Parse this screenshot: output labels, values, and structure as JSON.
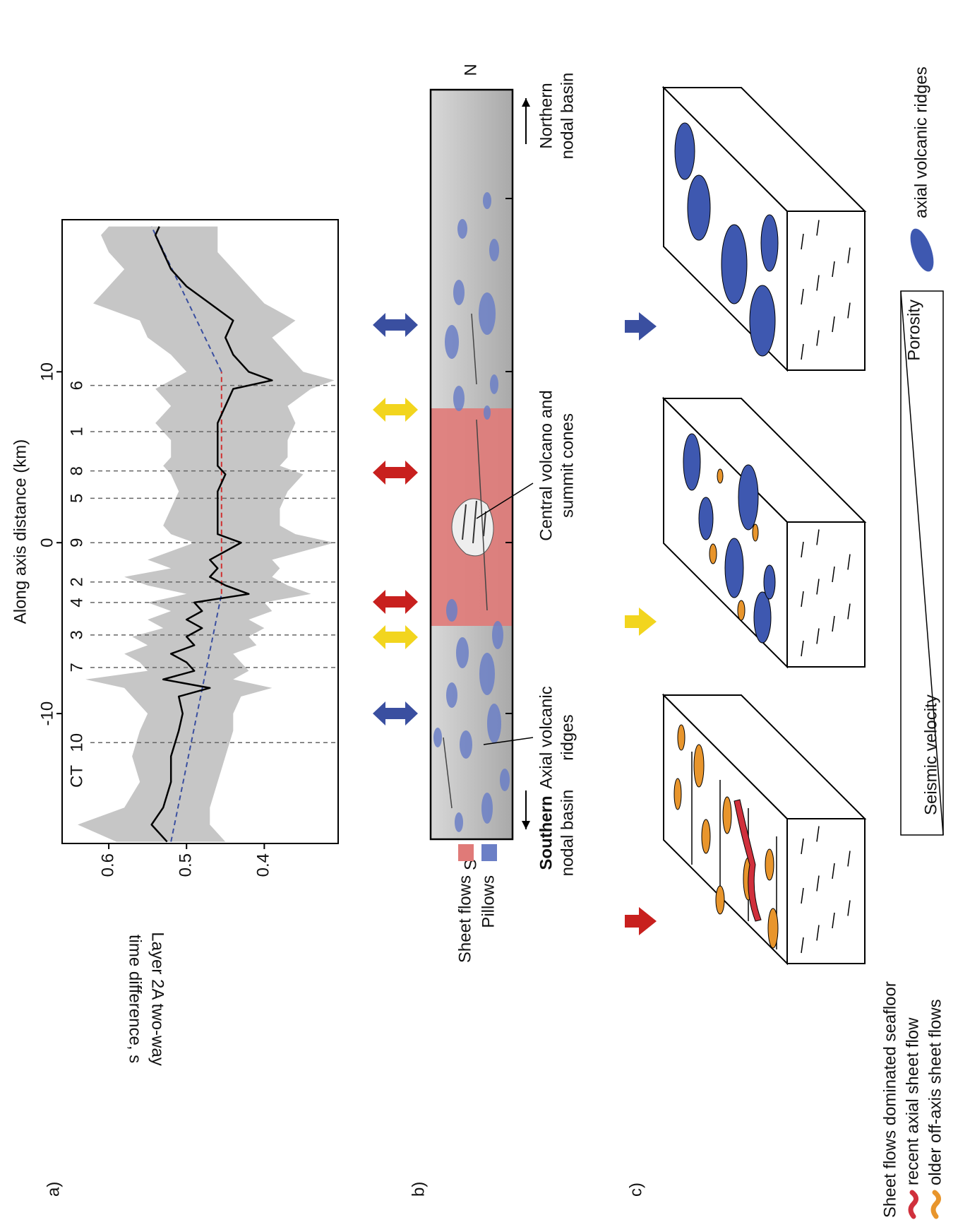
{
  "chart_data": {
    "type": "line",
    "panel_label": "a)",
    "xlabel": "Along axis distance (km)",
    "ylabel": [
      "Layer 2A two-way",
      "time difference, s"
    ],
    "xlim": [
      -17.6,
      18.9
    ],
    "ylim": [
      0.305,
      0.66
    ],
    "xticks": [
      -10,
      0,
      10
    ],
    "yticks": [
      0.4,
      0.5,
      0.6
    ],
    "x": [
      -17.5,
      -16.5,
      -15.5,
      -14,
      -12.5,
      -11,
      -10,
      -9,
      -8.5,
      -8,
      -7.5,
      -7,
      -6.5,
      -6,
      -5.5,
      -5,
      -4.5,
      -4,
      -3.5,
      -3,
      -2.5,
      -2,
      -1.5,
      -1,
      0,
      0.5,
      1,
      2,
      3,
      4,
      4.5,
      5,
      6,
      7,
      8,
      9,
      9.5,
      10,
      11,
      12,
      13,
      14,
      15,
      16,
      17,
      18,
      18.5
    ],
    "series": [
      {
        "color": "#000000",
        "values": [
          0.525,
          0.545,
          0.53,
          0.52,
          0.52,
          0.51,
          0.505,
          0.51,
          0.47,
          0.53,
          0.49,
          0.5,
          0.52,
          0.49,
          0.5,
          0.48,
          0.5,
          0.48,
          0.49,
          0.42,
          0.45,
          0.47,
          0.46,
          0.47,
          0.43,
          0.46,
          0.46,
          0.46,
          0.46,
          0.45,
          0.46,
          0.46,
          0.46,
          0.46,
          0.45,
          0.44,
          0.39,
          0.42,
          0.44,
          0.45,
          0.44,
          0.47,
          0.5,
          0.52,
          0.53,
          0.54,
          0.535
        ]
      }
    ],
    "band": {
      "color": "#c6c6c6",
      "upper": [
        0.59,
        0.64,
        0.58,
        0.56,
        0.57,
        0.56,
        0.55,
        0.57,
        0.58,
        0.63,
        0.55,
        0.56,
        0.58,
        0.55,
        0.57,
        0.53,
        0.55,
        0.52,
        0.55,
        0.5,
        0.55,
        0.58,
        0.52,
        0.55,
        0.49,
        0.52,
        0.53,
        0.52,
        0.51,
        0.52,
        0.53,
        0.52,
        0.52,
        0.54,
        0.52,
        0.54,
        0.52,
        0.5,
        0.52,
        0.55,
        0.56,
        0.62,
        0.6,
        0.58,
        0.6,
        0.61,
        0.6
      ],
      "lower": [
        0.45,
        0.47,
        0.47,
        0.46,
        0.45,
        0.44,
        0.44,
        0.43,
        0.39,
        0.44,
        0.42,
        0.43,
        0.44,
        0.41,
        0.42,
        0.4,
        0.42,
        0.39,
        0.4,
        0.34,
        0.37,
        0.39,
        0.38,
        0.39,
        0.31,
        0.36,
        0.38,
        0.38,
        0.37,
        0.35,
        0.38,
        0.37,
        0.37,
        0.36,
        0.37,
        0.34,
        0.31,
        0.35,
        0.37,
        0.39,
        0.36,
        0.4,
        0.42,
        0.44,
        0.46,
        0.46,
        0.46
      ]
    },
    "trend": [
      {
        "color": "#3a4fa0",
        "x": [
          -17.5,
          -3
        ],
        "values": [
          0.52,
          0.455
        ]
      },
      {
        "color": "#d03030",
        "x": [
          -3,
          10
        ],
        "values": [
          0.455,
          0.455
        ]
      },
      {
        "color": "#3a4fa0",
        "x": [
          10,
          18.5
        ],
        "values": [
          0.455,
          0.545
        ]
      }
    ],
    "stations": {
      "label": "CT",
      "labels": [
        "10",
        "7",
        "3",
        "4",
        "2",
        "9",
        "5",
        "8",
        "1",
        "6"
      ],
      "x": [
        -11.7,
        -7.3,
        -5.4,
        -3.5,
        -2.3,
        0,
        2.6,
        4.2,
        6.5,
        9.2
      ]
    }
  },
  "map": {
    "panel_label": "b)",
    "south": "S",
    "north": "N",
    "southern_basin": [
      "Southern",
      "nodal basin"
    ],
    "northern_basin": [
      "Northern",
      "nodal basin"
    ],
    "axial_ridges": [
      "Axial volcanic",
      "ridges"
    ],
    "central_volcano": [
      "Central volcano and",
      "summit cones"
    ],
    "legend": [
      {
        "label": "Sheet flows",
        "color": "#e07a78"
      },
      {
        "label": "Pillows",
        "color": "#6b7fc6"
      }
    ]
  },
  "blocks": {
    "panel_label": "c)",
    "legend": {
      "title": "Sheet flows dominated seafloor",
      "recent": "recent axial sheet flow",
      "older": "older off-axis sheet flows",
      "ridges": "axial volcanic ridges",
      "velocity": "Seismic velocity",
      "porosity": "Porosity"
    }
  }
}
